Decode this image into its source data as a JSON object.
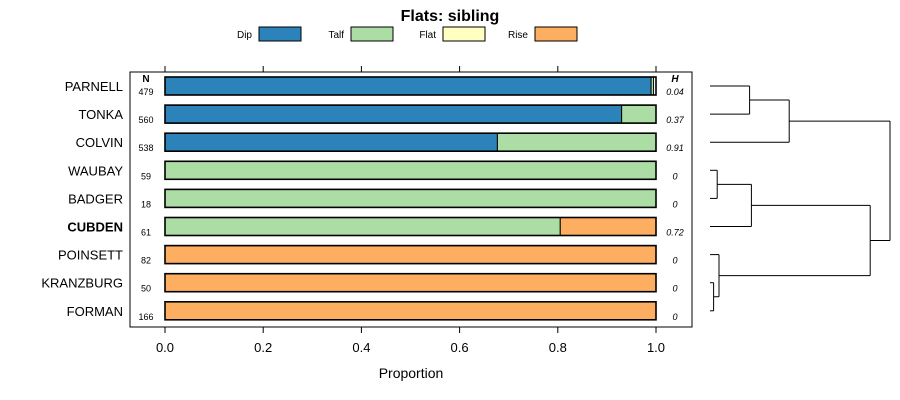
{
  "chart_data": {
    "type": "bar",
    "title": "Flats: sibling",
    "xlabel": "Proportion",
    "ylabel": "",
    "xlim": [
      -0.06,
      1.07
    ],
    "xticks": [
      0.0,
      0.2,
      0.4,
      0.6,
      0.8,
      1.0
    ],
    "xtick_labels": [
      "0.0",
      "0.2",
      "0.4",
      "0.6",
      "0.8",
      "1.0"
    ],
    "legend": {
      "position": "top",
      "entries": [
        {
          "label": "Dip",
          "color": "#2b83ba"
        },
        {
          "label": "Talf",
          "color": "#abdda4"
        },
        {
          "label": "Flat",
          "color": "#ffffbf"
        },
        {
          "label": "Rise",
          "color": "#fdae61"
        }
      ]
    },
    "n_header": "N",
    "h_header": "H",
    "categories": [
      "PARNELL",
      "TONKA",
      "COLVIN",
      "WAUBAY",
      "BADGER",
      "CUBDEN",
      "POINSETT",
      "KRANZBURG",
      "FORMAN"
    ],
    "bold_categories": [
      "CUBDEN"
    ],
    "n_values": [
      "479",
      "560",
      "538",
      "59",
      "18",
      "61",
      "82",
      "50",
      "166"
    ],
    "h_values": [
      "0.04",
      "0.37",
      "0.91",
      "0",
      "0",
      "0.72",
      "0",
      "0",
      "0"
    ],
    "series": [
      {
        "name": "Dip",
        "values": [
          0.99,
          0.93,
          0.677,
          0,
          0,
          0,
          0,
          0,
          0
        ]
      },
      {
        "name": "Talf",
        "values": [
          0.005,
          0.07,
          0.323,
          1.0,
          1.0,
          0.805,
          0,
          0,
          0
        ]
      },
      {
        "name": "Flat",
        "values": [
          0,
          0,
          0,
          0,
          0,
          0,
          0,
          0,
          0
        ]
      },
      {
        "name": "Rise",
        "values": [
          0,
          0,
          0,
          0,
          0,
          0.195,
          1.0,
          1.0,
          1.0
        ]
      }
    ],
    "dendrogram": {
      "merges": [
        {
          "a": 0,
          "b": 1,
          "height": 0.22
        },
        {
          "a": 3,
          "b": 4,
          "height": 0.04
        },
        {
          "a": 7,
          "b": 8,
          "height": 0.02
        },
        {
          "a": 6,
          "b": "m2",
          "height": 0.05
        },
        {
          "a": "m1",
          "b": 5,
          "height": 0.23
        },
        {
          "a": "m0",
          "b": 2,
          "height": 0.44
        },
        {
          "a": "m4",
          "b": "m3",
          "height": 0.89
        },
        {
          "a": "m5",
          "b": "m6",
          "height": 1.0
        }
      ]
    }
  }
}
